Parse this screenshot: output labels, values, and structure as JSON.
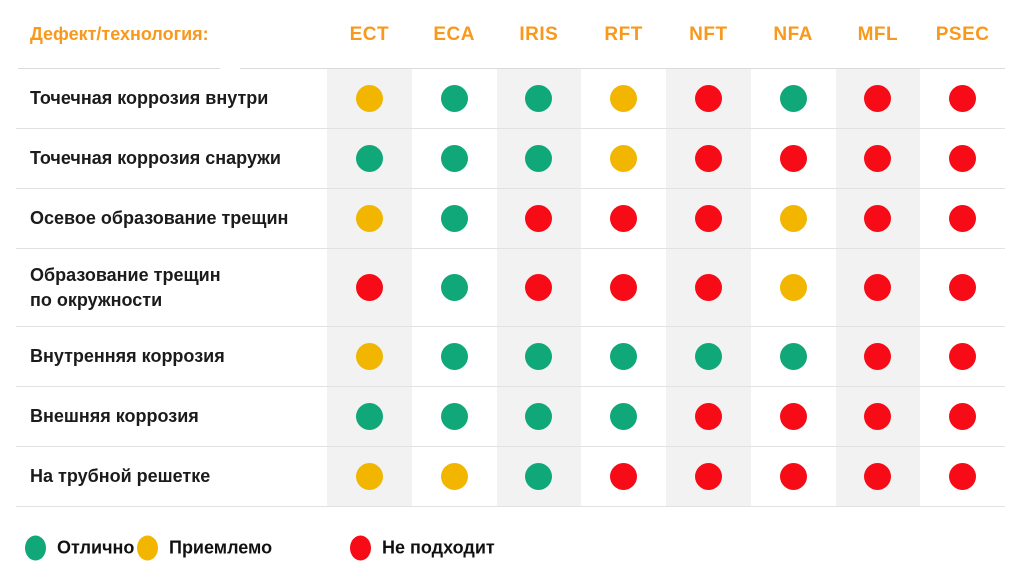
{
  "header": {
    "row_label": "Дефект/технология:",
    "columns": [
      "ECT",
      "ECA",
      "IRIS",
      "RFT",
      "NFT",
      "NFA",
      "MFL",
      "PSEC"
    ]
  },
  "rows": [
    {
      "label": "Точечная коррозия внутри",
      "values": [
        "acceptable",
        "excellent",
        "excellent",
        "acceptable",
        "unsuitable",
        "excellent",
        "unsuitable",
        "unsuitable"
      ]
    },
    {
      "label": "Точечная коррозия снаружи",
      "values": [
        "excellent",
        "excellent",
        "excellent",
        "acceptable",
        "unsuitable",
        "unsuitable",
        "unsuitable",
        "unsuitable"
      ]
    },
    {
      "label": "Осевое образование трещин",
      "values": [
        "acceptable",
        "excellent",
        "unsuitable",
        "unsuitable",
        "unsuitable",
        "acceptable",
        "unsuitable",
        "unsuitable"
      ]
    },
    {
      "label": "Образование трещин\nпо окружности",
      "values": [
        "unsuitable",
        "excellent",
        "unsuitable",
        "unsuitable",
        "unsuitable",
        "acceptable",
        "unsuitable",
        "unsuitable"
      ]
    },
    {
      "label": "Внутренняя коррозия",
      "values": [
        "acceptable",
        "excellent",
        "excellent",
        "excellent",
        "excellent",
        "excellent",
        "unsuitable",
        "unsuitable"
      ]
    },
    {
      "label": "Внешняя коррозия",
      "values": [
        "excellent",
        "excellent",
        "excellent",
        "excellent",
        "unsuitable",
        "unsuitable",
        "unsuitable",
        "unsuitable"
      ]
    },
    {
      "label": "На трубной решетке",
      "values": [
        "acceptable",
        "acceptable",
        "excellent",
        "unsuitable",
        "unsuitable",
        "unsuitable",
        "unsuitable",
        "unsuitable"
      ]
    }
  ],
  "legend": [
    {
      "key": "excellent",
      "label": "Отлично"
    },
    {
      "key": "acceptable",
      "label": "Приемлемо"
    },
    {
      "key": "unsuitable",
      "label": "Не подходит"
    }
  ],
  "colors": {
    "excellent": "#10A878",
    "acceptable": "#F2B600",
    "unsuitable": "#F70B16",
    "header_accent": "#F8991D",
    "stripe": "#F2F2F2",
    "separator": "#E2E2E2"
  },
  "chart_data": {
    "type": "table",
    "title": "Дефект/технология:",
    "columns": [
      "ECT",
      "ECA",
      "IRIS",
      "RFT",
      "NFT",
      "NFA",
      "MFL",
      "PSEC"
    ],
    "row_labels": [
      "Точечная коррозия внутри",
      "Точечная коррозия снаружи",
      "Осевое образование трещин",
      "Образование трещин по окружности",
      "Внутренняя коррозия",
      "Внешняя коррозия",
      "На трубной решетке"
    ],
    "cell_values": [
      [
        "acceptable",
        "excellent",
        "excellent",
        "acceptable",
        "unsuitable",
        "excellent",
        "unsuitable",
        "unsuitable"
      ],
      [
        "excellent",
        "excellent",
        "excellent",
        "acceptable",
        "unsuitable",
        "unsuitable",
        "unsuitable",
        "unsuitable"
      ],
      [
        "acceptable",
        "excellent",
        "unsuitable",
        "unsuitable",
        "unsuitable",
        "acceptable",
        "unsuitable",
        "unsuitable"
      ],
      [
        "unsuitable",
        "excellent",
        "unsuitable",
        "unsuitable",
        "unsuitable",
        "acceptable",
        "unsuitable",
        "unsuitable"
      ],
      [
        "acceptable",
        "excellent",
        "excellent",
        "excellent",
        "excellent",
        "excellent",
        "unsuitable",
        "unsuitable"
      ],
      [
        "excellent",
        "excellent",
        "excellent",
        "excellent",
        "unsuitable",
        "unsuitable",
        "unsuitable",
        "unsuitable"
      ],
      [
        "acceptable",
        "acceptable",
        "excellent",
        "unsuitable",
        "unsuitable",
        "unsuitable",
        "unsuitable",
        "unsuitable"
      ]
    ],
    "value_legend": {
      "excellent": "Отлично",
      "acceptable": "Приемлемо",
      "unsuitable": "Не подходит"
    },
    "value_colors": {
      "excellent": "#10A878",
      "acceptable": "#F2B600",
      "unsuitable": "#F70B16"
    },
    "layout": {
      "striped_columns": [
        "ECT",
        "IRIS",
        "NFT",
        "MFL"
      ],
      "legend_position": "bottom"
    }
  }
}
